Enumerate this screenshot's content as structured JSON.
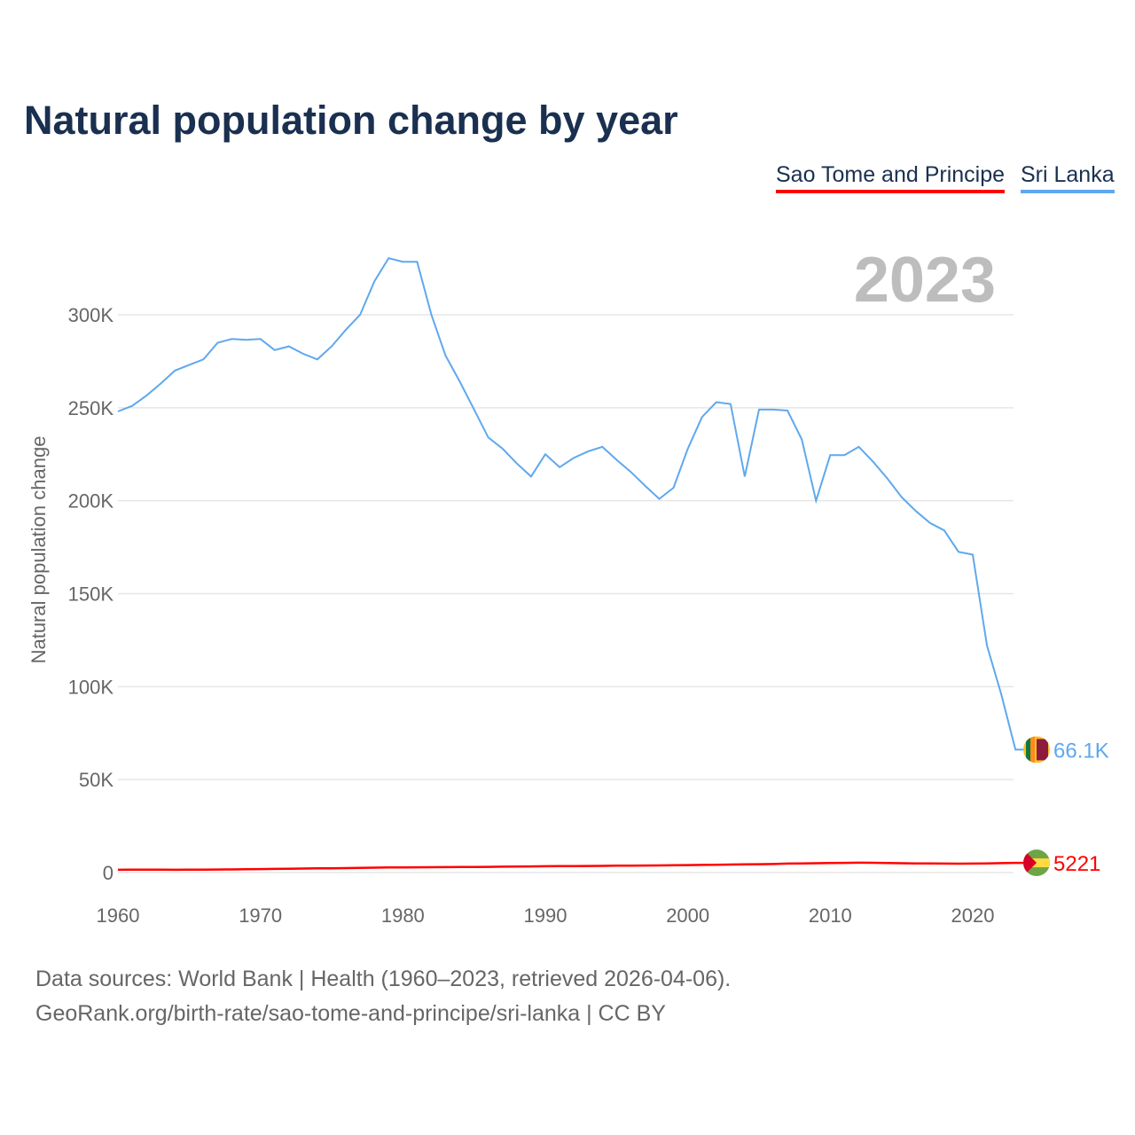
{
  "chart_data": {
    "type": "line",
    "title": "Natural population change by year",
    "ylabel": "Natural population change",
    "xlabel": "",
    "year_label": "2023",
    "xlim": [
      1960,
      2023
    ],
    "ylim": [
      0,
      330000
    ],
    "x_ticks": [
      1960,
      1970,
      1980,
      1990,
      2000,
      2010,
      2020
    ],
    "y_ticks": [
      0,
      50000,
      100000,
      150000,
      200000,
      250000,
      300000
    ],
    "y_tick_labels": [
      "0",
      "50K",
      "100K",
      "150K",
      "200K",
      "250K",
      "300K"
    ],
    "grid": true,
    "legend_position": "top-right",
    "x": [
      1960,
      1961,
      1962,
      1963,
      1964,
      1965,
      1966,
      1967,
      1968,
      1969,
      1970,
      1971,
      1972,
      1973,
      1974,
      1975,
      1976,
      1977,
      1978,
      1979,
      1980,
      1981,
      1982,
      1983,
      1984,
      1985,
      1986,
      1987,
      1988,
      1989,
      1990,
      1991,
      1992,
      1993,
      1994,
      1995,
      1996,
      1997,
      1998,
      1999,
      2000,
      2001,
      2002,
      2003,
      2004,
      2005,
      2006,
      2007,
      2008,
      2009,
      2010,
      2011,
      2012,
      2013,
      2014,
      2015,
      2016,
      2017,
      2018,
      2019,
      2020,
      2021,
      2022,
      2023
    ],
    "series": [
      {
        "name": "Sao Tome and Principe",
        "color": "#ff0000",
        "end_label": "5221",
        "flag": "sao-tome-flag",
        "values": [
          1500,
          1550,
          1550,
          1550,
          1500,
          1550,
          1550,
          1600,
          1650,
          1750,
          1850,
          1950,
          2050,
          2150,
          2250,
          2300,
          2400,
          2500,
          2600,
          2700,
          2750,
          2800,
          2850,
          2900,
          2950,
          3000,
          3050,
          3150,
          3250,
          3300,
          3400,
          3450,
          3500,
          3550,
          3600,
          3650,
          3700,
          3750,
          3800,
          3900,
          4000,
          4100,
          4200,
          4300,
          4400,
          4500,
          4600,
          4800,
          4900,
          5000,
          5100,
          5200,
          5300,
          5250,
          5150,
          5000,
          4900,
          4850,
          4800,
          4750,
          4800,
          4900,
          5050,
          5221
        ]
      },
      {
        "name": "Sri Lanka",
        "color": "#5fa8ee",
        "end_label": "66.1K",
        "flag": "sri-lanka-flag",
        "values": [
          248000,
          251000,
          256500,
          263000,
          270000,
          273000,
          276000,
          285000,
          287000,
          286500,
          287000,
          281000,
          283000,
          279000,
          276000,
          283000,
          292000,
          300000,
          318000,
          330500,
          328500,
          328500,
          300000,
          278000,
          264000,
          249000,
          234000,
          228000,
          220000,
          213000,
          225000,
          218000,
          223000,
          226500,
          229000,
          222000,
          215500,
          208000,
          201000,
          207000,
          228000,
          245000,
          253000,
          252000,
          213000,
          249000,
          249000,
          248500,
          233000,
          200000,
          224500,
          224500,
          229000,
          221000,
          212000,
          202000,
          194500,
          188000,
          184000,
          172500,
          171000,
          122000,
          96000,
          66100
        ]
      }
    ]
  },
  "footer": {
    "line1": "Data sources: World Bank | Health (1960–2023, retrieved 2026-04-06).",
    "line2": "GeoRank.org/birth-rate/sao-tome-and-principe/sri-lanka | CC BY"
  }
}
